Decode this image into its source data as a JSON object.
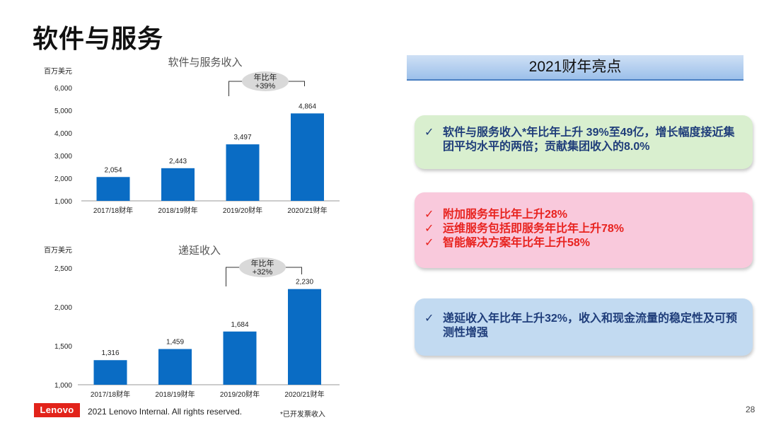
{
  "page_title": "软件与服务",
  "highlights": {
    "header": "2021财年亮点",
    "box1": [
      "软件与服务收入*年比年上升 39%至49亿，增长幅度接近集团平均水平的两倍；贡献集团收入的8.0%"
    ],
    "box2": [
      "附加服务年比年上升28%",
      "运维服务包括即服务年比年上升78%",
      "智能解决方案年比年上升58%"
    ],
    "box3": [
      "递延收入年比年上升32%，收入和现金流量的稳定性及可预测性增强"
    ],
    "check": "✓"
  },
  "footer": {
    "logo": "Lenovo",
    "copyright": "2021 Lenovo Internal. All rights reserved.",
    "footnote": "*已开发票收入",
    "page_number": "28"
  },
  "colors": {
    "bar": "#0a6cc4",
    "callout": "#d9d9d9",
    "logo": "#e2231a"
  },
  "chart_data": [
    {
      "type": "bar",
      "title": "软件与服务收入",
      "ylabel": "百万美元",
      "categories": [
        "2017/18财年",
        "2018/19财年",
        "2019/20财年",
        "2020/21财年"
      ],
      "values": [
        2054,
        2443,
        3497,
        4864
      ],
      "value_labels": [
        "2,054",
        "2,443",
        "3,497",
        "4,864"
      ],
      "ylim": [
        1000,
        6000
      ],
      "yticks": [
        1000,
        2000,
        3000,
        4000,
        5000,
        6000
      ],
      "ytick_labels": [
        "1,000",
        "2,000",
        "3,000",
        "4,000",
        "5,000",
        "6,000"
      ],
      "callout": {
        "line1": "年比年",
        "line2": "+39%"
      }
    },
    {
      "type": "bar",
      "title": "递延收入",
      "ylabel": "百万美元",
      "categories": [
        "2017/18财年",
        "2018/19财年",
        "2019/20财年",
        "2020/21财年"
      ],
      "values": [
        1316,
        1459,
        1684,
        2230
      ],
      "value_labels": [
        "1,316",
        "1,459",
        "1,684",
        "2,230"
      ],
      "ylim": [
        1000,
        2500
      ],
      "yticks": [
        1000,
        1500,
        2000,
        2500
      ],
      "ytick_labels": [
        "1,000",
        "1,500",
        "2,000",
        "2,500"
      ],
      "callout": {
        "line1": "年比年",
        "line2": "+32%"
      }
    }
  ]
}
